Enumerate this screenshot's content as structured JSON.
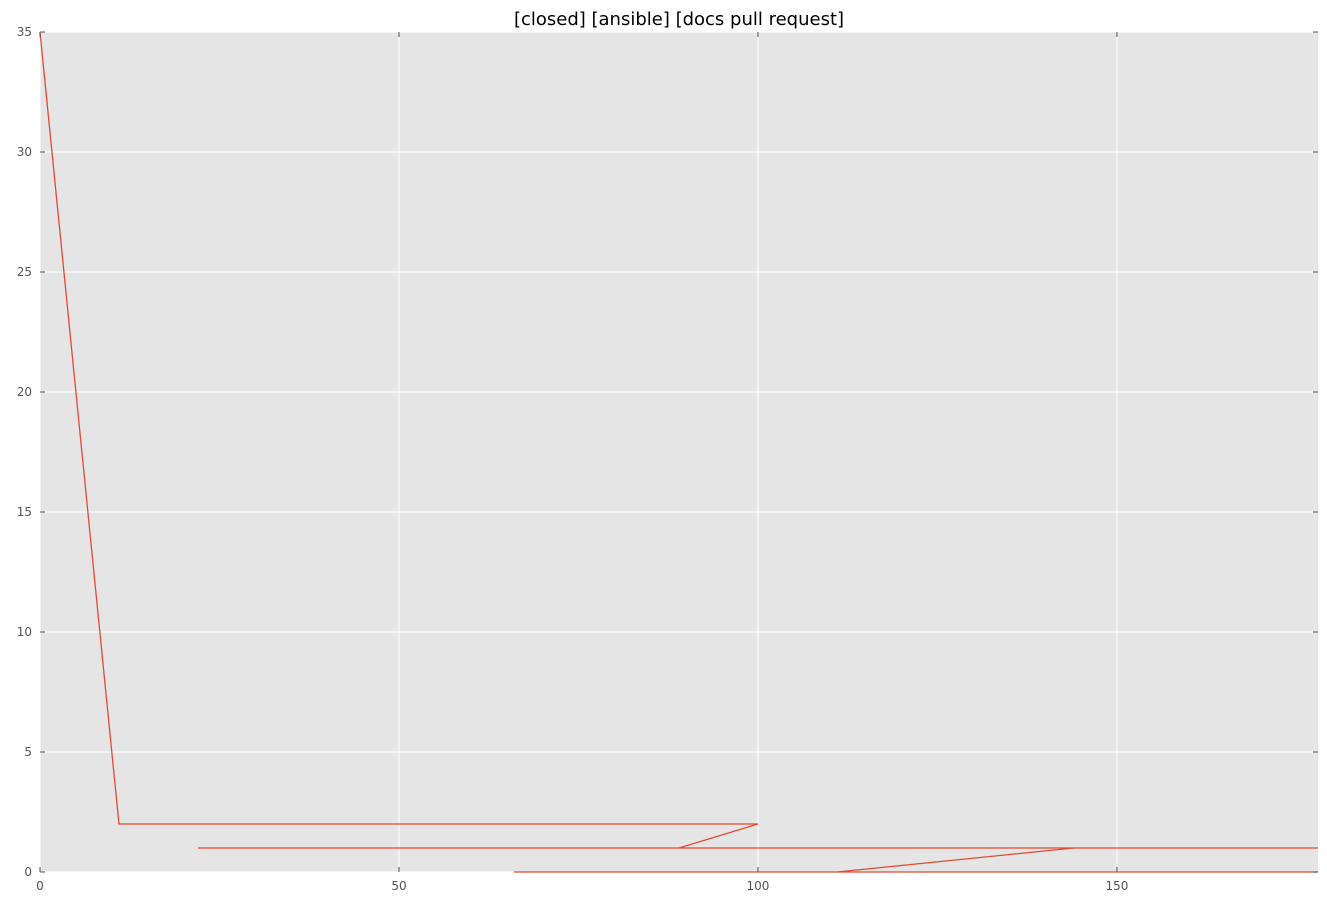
{
  "chart_data": {
    "type": "line",
    "title": "[closed] [ansible] [docs pull request]",
    "xlabel": "",
    "ylabel": "",
    "xlim": [
      0,
      178
    ],
    "ylim": [
      0,
      35
    ],
    "xticks": [
      0,
      50,
      100,
      150
    ],
    "yticks": [
      0,
      5,
      10,
      15,
      20,
      25,
      30,
      35
    ],
    "grid": true,
    "legend": "none",
    "series": [
      {
        "x": [
          0,
          11,
          100,
          89,
          22,
          178,
          144,
          111,
          66,
          178
        ],
        "values": [
          35,
          2,
          2,
          1,
          1,
          1,
          1,
          0,
          0,
          0
        ]
      }
    ]
  },
  "colors": {
    "line": "#e24a33",
    "plot_background": "#e5e5e5",
    "grid": "#ffffff",
    "tick_label": "#555555"
  }
}
